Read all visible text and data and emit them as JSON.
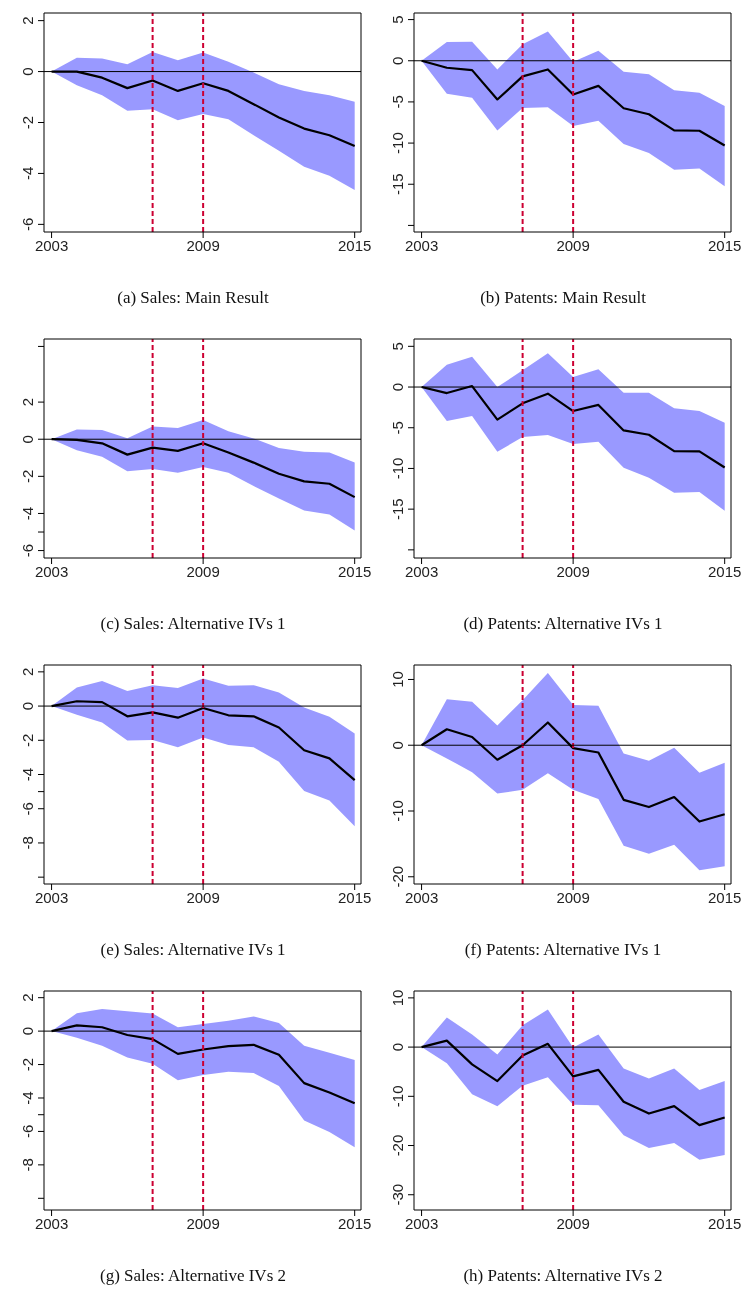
{
  "chart_data": [
    {
      "type": "line",
      "title": "(a) Sales: Main Result",
      "x": [
        2003,
        2004,
        2005,
        2006,
        2007,
        2008,
        2009,
        2010,
        2011,
        2012,
        2013,
        2014,
        2015
      ],
      "xlim": [
        2002.7,
        2015.25
      ],
      "xticks": [
        2003,
        2009,
        2015
      ],
      "ylim": [
        -6.3,
        2.3
      ],
      "yticks": [
        -6,
        -4,
        -2,
        0,
        2
      ],
      "ref_lines": [
        {
          "axis": "x",
          "value": 2007,
          "color": "#cc0033",
          "line_style": "dashed"
        },
        {
          "axis": "x",
          "value": 2009,
          "color": "#cc0033",
          "line_style": "dashed"
        },
        {
          "axis": "y",
          "value": 0,
          "color": "#000000",
          "line_style": "solid"
        }
      ],
      "series": [
        {
          "color": "#000000",
          "values": [
            0,
            0,
            -0.24,
            -0.65,
            -0.35,
            -0.76,
            -0.46,
            -0.76,
            -1.28,
            -1.8,
            -2.24,
            -2.5,
            -2.92
          ],
          "lower": [
            0,
            -0.54,
            -0.93,
            -1.54,
            -1.48,
            -1.91,
            -1.67,
            -1.87,
            -2.5,
            -3.11,
            -3.74,
            -4.09,
            -4.65
          ],
          "upper": [
            0,
            0.54,
            0.51,
            0.29,
            0.77,
            0.44,
            0.75,
            0.39,
            -0.04,
            -0.5,
            -0.76,
            -0.93,
            -1.19
          ]
        }
      ]
    },
    {
      "type": "line",
      "title": "(b) Patents: Main Result",
      "x": [
        2003,
        2004,
        2005,
        2006,
        2007,
        2008,
        2009,
        2010,
        2011,
        2012,
        2013,
        2014,
        2015
      ],
      "xlim": [
        2002.7,
        2015.25
      ],
      "xticks": [
        2003,
        2009,
        2015
      ],
      "ylim": [
        -20.8,
        5.8
      ],
      "yticks": [
        {
          "value": -20,
          "label": null
        },
        -15,
        -10,
        -5,
        0,
        5
      ],
      "ref_lines": [
        {
          "axis": "x",
          "value": 2007,
          "color": "#cc0033",
          "line_style": "dashed"
        },
        {
          "axis": "x",
          "value": 2009,
          "color": "#cc0033",
          "line_style": "dashed"
        },
        {
          "axis": "y",
          "value": 0,
          "color": "#000000",
          "line_style": "solid"
        }
      ],
      "series": [
        {
          "color": "#000000",
          "values": [
            0,
            -0.85,
            -1.14,
            -4.7,
            -1.9,
            -1.06,
            -4.1,
            -3.05,
            -5.77,
            -6.5,
            -8.46,
            -8.5,
            -10.3
          ],
          "lower": [
            0,
            -4.0,
            -4.5,
            -8.46,
            -5.73,
            -5.65,
            -7.93,
            -7.3,
            -10.1,
            -11.2,
            -13.25,
            -13.1,
            -15.24
          ],
          "upper": [
            0,
            2.28,
            2.3,
            -1.06,
            2.0,
            3.54,
            -0.12,
            1.22,
            -1.34,
            -1.63,
            -3.58,
            -3.9,
            -5.5
          ]
        }
      ]
    },
    {
      "type": "line",
      "title": "(c) Sales: Alternative IVs 1",
      "x": [
        2003,
        2004,
        2005,
        2006,
        2007,
        2008,
        2009,
        2010,
        2011,
        2012,
        2013,
        2014,
        2015
      ],
      "xlim": [
        2002.7,
        2015.25
      ],
      "xticks": [
        2003,
        2009,
        2015
      ],
      "ylim": [
        -6.4,
        5.4
      ],
      "yticks": [
        -6,
        {
          "value": -5,
          "label": null
        },
        -4,
        -2,
        0,
        2,
        {
          "value": 5,
          "label": null
        }
      ],
      "ref_lines": [
        {
          "axis": "x",
          "value": 2007,
          "color": "#cc0033",
          "line_style": "dashed"
        },
        {
          "axis": "x",
          "value": 2009,
          "color": "#cc0033",
          "line_style": "dashed"
        },
        {
          "axis": "y",
          "value": 0,
          "color": "#000000",
          "line_style": "solid"
        }
      ],
      "series": [
        {
          "color": "#000000",
          "values": [
            0,
            -0.04,
            -0.22,
            -0.83,
            -0.45,
            -0.63,
            -0.22,
            -0.72,
            -1.26,
            -1.86,
            -2.27,
            -2.4,
            -3.12
          ],
          "lower": [
            0,
            -0.59,
            -0.95,
            -1.73,
            -1.6,
            -1.8,
            -1.5,
            -1.8,
            -2.52,
            -3.2,
            -3.84,
            -4.05,
            -4.92
          ],
          "upper": [
            0,
            0.52,
            0.5,
            0.05,
            0.68,
            0.6,
            1.03,
            0.43,
            0.04,
            -0.47,
            -0.67,
            -0.72,
            -1.26
          ]
        }
      ]
    },
    {
      "type": "line",
      "title": "(d) Patents: Alternative IVs 1",
      "x": [
        2003,
        2004,
        2005,
        2006,
        2007,
        2008,
        2009,
        2010,
        2011,
        2012,
        2013,
        2014,
        2015
      ],
      "xlim": [
        2002.7,
        2015.25
      ],
      "xticks": [
        2003,
        2009,
        2015
      ],
      "ylim": [
        -21,
        5.9
      ],
      "yticks": [
        {
          "value": -20,
          "label": null
        },
        -15,
        -10,
        -5,
        0,
        5
      ],
      "ref_lines": [
        {
          "axis": "x",
          "value": 2007,
          "color": "#cc0033",
          "line_style": "dashed"
        },
        {
          "axis": "x",
          "value": 2009,
          "color": "#cc0033",
          "line_style": "dashed"
        },
        {
          "axis": "y",
          "value": 0,
          "color": "#000000",
          "line_style": "solid"
        }
      ],
      "series": [
        {
          "color": "#000000",
          "values": [
            0,
            -0.74,
            0.12,
            -4.0,
            -2.0,
            -0.82,
            -2.95,
            -2.2,
            -5.33,
            -5.86,
            -7.87,
            -7.9,
            -9.88
          ],
          "lower": [
            0,
            -4.18,
            -3.57,
            -7.95,
            -6.15,
            -5.9,
            -7.0,
            -6.72,
            -9.92,
            -11.15,
            -13.0,
            -12.9,
            -15.2
          ],
          "upper": [
            0,
            2.75,
            3.73,
            0,
            2.05,
            4.14,
            1.23,
            2.17,
            -0.7,
            -0.7,
            -2.62,
            -2.95,
            -4.38
          ]
        }
      ]
    },
    {
      "type": "line",
      "title": "(e) Sales: Alternative IVs 1",
      "x": [
        2003,
        2004,
        2005,
        2006,
        2007,
        2008,
        2009,
        2010,
        2011,
        2012,
        2013,
        2014,
        2015
      ],
      "xlim": [
        2002.7,
        2015.25
      ],
      "xticks": [
        2003,
        2009,
        2015
      ],
      "ylim": [
        -10.4,
        2.4
      ],
      "yticks": [
        {
          "value": -10,
          "label": null
        },
        -8,
        -6,
        {
          "value": -5,
          "label": null
        },
        -4,
        -2,
        0,
        2
      ],
      "ref_lines": [
        {
          "axis": "x",
          "value": 2007,
          "color": "#cc0033",
          "line_style": "dashed"
        },
        {
          "axis": "x",
          "value": 2009,
          "color": "#cc0033",
          "line_style": "dashed"
        },
        {
          "axis": "y",
          "value": 0,
          "color": "#000000",
          "line_style": "solid"
        }
      ],
      "series": [
        {
          "color": "#000000",
          "values": [
            0,
            0.28,
            0.23,
            -0.6,
            -0.37,
            -0.68,
            -0.11,
            -0.54,
            -0.6,
            -1.25,
            -2.58,
            -3.06,
            -4.33
          ],
          "lower": [
            0,
            -0.51,
            -0.96,
            -2.01,
            -1.98,
            -2.41,
            -1.84,
            -2.27,
            -2.41,
            -3.26,
            -4.96,
            -5.52,
            -7.02
          ],
          "upper": [
            0,
            1.08,
            1.47,
            0.88,
            1.22,
            1.05,
            1.61,
            1.19,
            1.22,
            0.8,
            -0.08,
            -0.62,
            -1.61
          ]
        }
      ]
    },
    {
      "type": "line",
      "title": "(f) Patents: Alternative IVs 1",
      "x": [
        2003,
        2004,
        2005,
        2006,
        2007,
        2008,
        2009,
        2010,
        2011,
        2012,
        2013,
        2014,
        2015
      ],
      "xlim": [
        2002.7,
        2015.25
      ],
      "xticks": [
        2003,
        2009,
        2015
      ],
      "ylim": [
        -21.1,
        12.2
      ],
      "yticks": [
        -20,
        -10,
        0,
        10
      ],
      "ref_lines": [
        {
          "axis": "x",
          "value": 2007,
          "color": "#cc0033",
          "line_style": "dashed"
        },
        {
          "axis": "x",
          "value": 2009,
          "color": "#cc0033",
          "line_style": "dashed"
        },
        {
          "axis": "y",
          "value": 0,
          "color": "#000000",
          "line_style": "solid"
        }
      ],
      "series": [
        {
          "color": "#000000",
          "values": [
            0,
            2.43,
            1.25,
            -2.2,
            0,
            3.46,
            -0.44,
            -1.1,
            -8.3,
            -9.4,
            -7.87,
            -11.6,
            -10.5
          ],
          "lower": [
            0,
            -2.0,
            -4.1,
            -7.35,
            -6.76,
            -4.26,
            -6.76,
            -8.16,
            -15.3,
            -16.5,
            -15.15,
            -19.0,
            -18.4
          ],
          "upper": [
            0,
            7.0,
            6.6,
            3.0,
            6.84,
            11.0,
            6.1,
            6.0,
            -1.25,
            -2.35,
            -0.37,
            -4.2,
            -2.65
          ]
        }
      ]
    },
    {
      "type": "line",
      "title": "(g) Sales: Alternative IVs 2",
      "x": [
        2003,
        2004,
        2005,
        2006,
        2007,
        2008,
        2009,
        2010,
        2011,
        2012,
        2013,
        2014,
        2015
      ],
      "xlim": [
        2002.7,
        2015.25
      ],
      "xticks": [
        2003,
        2009,
        2015
      ],
      "ylim": [
        -10.7,
        2.4
      ],
      "yticks": [
        {
          "value": -10,
          "label": null
        },
        -8,
        -6,
        {
          "value": -5,
          "label": null
        },
        -4,
        -2,
        0,
        2
      ],
      "ref_lines": [
        {
          "axis": "x",
          "value": 2007,
          "color": "#cc0033",
          "line_style": "dashed"
        },
        {
          "axis": "x",
          "value": 2009,
          "color": "#cc0033",
          "line_style": "dashed"
        },
        {
          "axis": "y",
          "value": 0,
          "color": "#000000",
          "line_style": "solid"
        }
      ],
      "series": [
        {
          "color": "#000000",
          "values": [
            0,
            0.34,
            0.23,
            -0.23,
            -0.48,
            -1.36,
            -1.1,
            -0.9,
            -0.82,
            -1.41,
            -3.11,
            -3.67,
            -4.32
          ],
          "lower": [
            0,
            -0.4,
            -0.88,
            -1.58,
            -1.95,
            -2.94,
            -2.63,
            -2.43,
            -2.51,
            -3.28,
            -5.34,
            -6.04,
            -6.95
          ],
          "upper": [
            0,
            1.07,
            1.33,
            1.19,
            1.05,
            0.23,
            0.42,
            0.62,
            0.88,
            0.48,
            -0.88,
            -1.3,
            -1.72
          ]
        }
      ]
    },
    {
      "type": "line",
      "title": "(h) Patents: Alternative IVs 2",
      "x": [
        2003,
        2004,
        2005,
        2006,
        2007,
        2008,
        2009,
        2010,
        2011,
        2012,
        2013,
        2014,
        2015
      ],
      "xlim": [
        2002.7,
        2015.25
      ],
      "xticks": [
        2003,
        2009,
        2015
      ],
      "ylim": [
        -33.1,
        11.4
      ],
      "yticks": [
        -30,
        -20,
        -10,
        0,
        10
      ],
      "ref_lines": [
        {
          "axis": "x",
          "value": 2007,
          "color": "#cc0033",
          "line_style": "dashed"
        },
        {
          "axis": "x",
          "value": 2009,
          "color": "#cc0033",
          "line_style": "dashed"
        },
        {
          "axis": "y",
          "value": 0,
          "color": "#000000",
          "line_style": "solid"
        }
      ],
      "series": [
        {
          "color": "#000000",
          "values": [
            0,
            1.32,
            -3.5,
            -6.9,
            -1.7,
            0.66,
            -5.94,
            -4.62,
            -11.1,
            -13.5,
            -12.0,
            -15.85,
            -14.3
          ],
          "lower": [
            0,
            -3.3,
            -9.6,
            -12.0,
            -7.83,
            -6.13,
            -11.7,
            -11.8,
            -17.9,
            -20.5,
            -19.5,
            -22.9,
            -21.9
          ],
          "upper": [
            0,
            6.04,
            2.55,
            -1.5,
            4.43,
            7.64,
            -0.1,
            2.55,
            -4.34,
            -6.4,
            -4.34,
            -8.7,
            -6.9
          ]
        }
      ]
    }
  ]
}
